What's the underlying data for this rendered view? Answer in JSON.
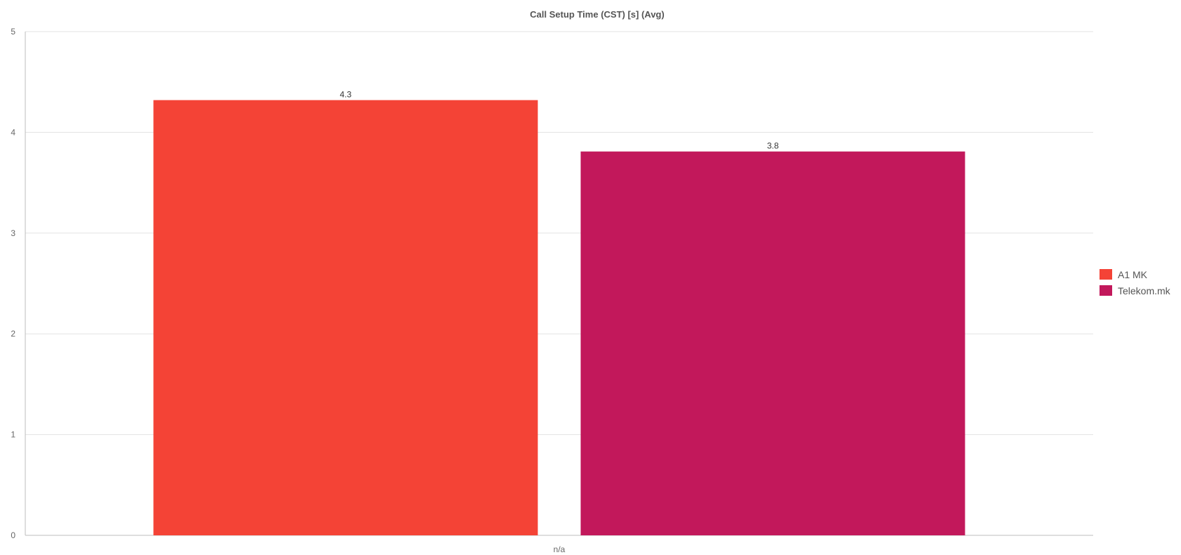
{
  "chart_data": {
    "type": "bar",
    "title": "Call Setup Time (CST) [s] (Avg)",
    "xlabel": "",
    "ylabel": "",
    "categories": [
      "n/a"
    ],
    "series": [
      {
        "name": "A1 MK",
        "values": [
          4.32
        ],
        "label": "4.3",
        "color": "#f44336"
      },
      {
        "name": "Telekom.mk",
        "values": [
          3.81
        ],
        "label": "3.8",
        "color": "#c2185b"
      }
    ],
    "ylim": [
      0,
      5
    ],
    "yticks": [
      "0",
      "1",
      "2",
      "3",
      "4",
      "5"
    ],
    "grid": true,
    "legend_position": "right"
  }
}
